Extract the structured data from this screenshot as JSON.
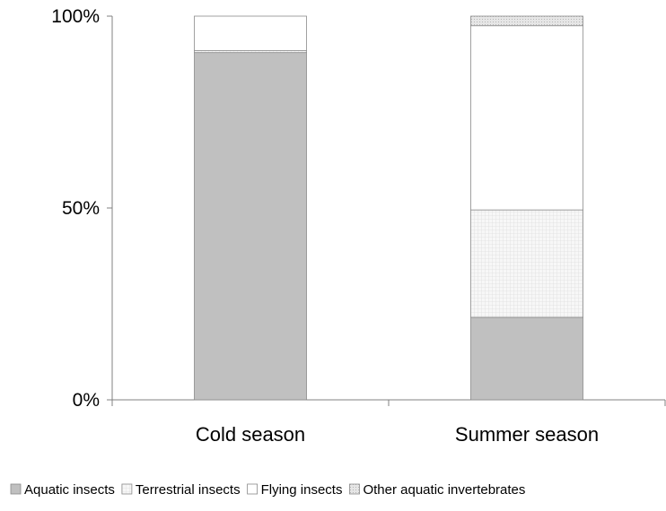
{
  "chart_data": {
    "type": "bar",
    "stacked": true,
    "percent": true,
    "categories": [
      "Cold season",
      "Summer season"
    ],
    "series": [
      {
        "name": "Aquatic insects",
        "values": [
          90.5,
          21.5
        ],
        "color": "#c0c0c0",
        "pattern": "solid"
      },
      {
        "name": "Terrestrial insects",
        "values": [
          0.5,
          28.0
        ],
        "color": "#f2f2f2",
        "pattern": "fine-grid"
      },
      {
        "name": "Flying insects",
        "values": [
          9.0,
          48.0
        ],
        "color": "#ffffff",
        "pattern": "solid"
      },
      {
        "name": "Other aquatic invertebrates",
        "values": [
          0.0,
          2.5
        ],
        "color": "#e0e0e0",
        "pattern": "dotted"
      }
    ],
    "y_ticks": [
      "0%",
      "50%",
      "100%"
    ],
    "ylim": [
      0,
      100
    ],
    "grid": false,
    "legend_position": "bottom",
    "axis_color": "#808080"
  }
}
